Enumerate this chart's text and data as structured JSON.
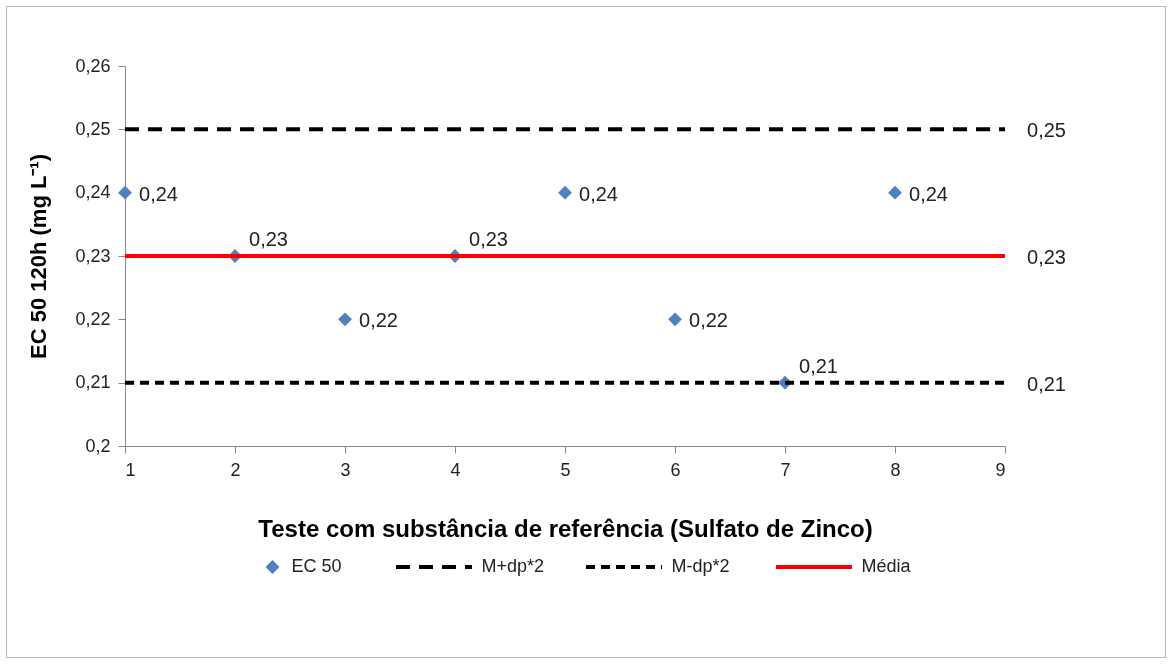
{
  "chart_data": {
    "type": "scatter",
    "xlabel": "Teste com substância de referência (Sulfato de Zinco)",
    "ylabel": "EC 50 120h (mg L⁻¹)",
    "xlim": [
      1,
      9
    ],
    "xticks": [
      1,
      2,
      3,
      4,
      5,
      6,
      7,
      8,
      9
    ],
    "ylim": [
      0.2,
      0.26
    ],
    "yticks": [
      {
        "value": 0.2,
        "label": "0,2"
      },
      {
        "value": 0.21,
        "label": "0,21"
      },
      {
        "value": 0.22,
        "label": "0,22"
      },
      {
        "value": 0.23,
        "label": "0,23"
      },
      {
        "value": 0.24,
        "label": "0,24"
      },
      {
        "value": 0.25,
        "label": "0,25"
      },
      {
        "value": 0.26,
        "label": "0,26"
      }
    ],
    "grid": false,
    "legend": "bottom",
    "series": [
      {
        "name": "EC 50",
        "type": "scatter",
        "marker": "diamond",
        "color": "#4f81bd",
        "x": [
          1,
          2,
          3,
          4,
          5,
          6,
          7,
          8
        ],
        "values": [
          0.24,
          0.23,
          0.22,
          0.23,
          0.24,
          0.22,
          0.21,
          0.24
        ],
        "value_labels": [
          "0,24",
          "0,23",
          "0,22",
          "0,23",
          "0,24",
          "0,22",
          "0,21",
          "0,24"
        ]
      },
      {
        "name": "M+dp*2",
        "type": "line",
        "line_style": "dashed",
        "color": "#000000",
        "x": [
          1,
          9
        ],
        "values": [
          0.25,
          0.25
        ],
        "value_labels": [
          null,
          "0,25"
        ]
      },
      {
        "name": "M-dp*2",
        "type": "line",
        "line_style": "dotted",
        "color": "#000000",
        "x": [
          1,
          9
        ],
        "values": [
          0.21,
          0.21
        ],
        "value_labels": [
          null,
          "0,21"
        ]
      },
      {
        "name": "Média",
        "type": "line",
        "line_style": "solid",
        "color": "#ff0000",
        "x": [
          1,
          9
        ],
        "values": [
          0.23,
          0.23
        ],
        "value_labels": [
          null,
          "0,23"
        ]
      }
    ]
  }
}
